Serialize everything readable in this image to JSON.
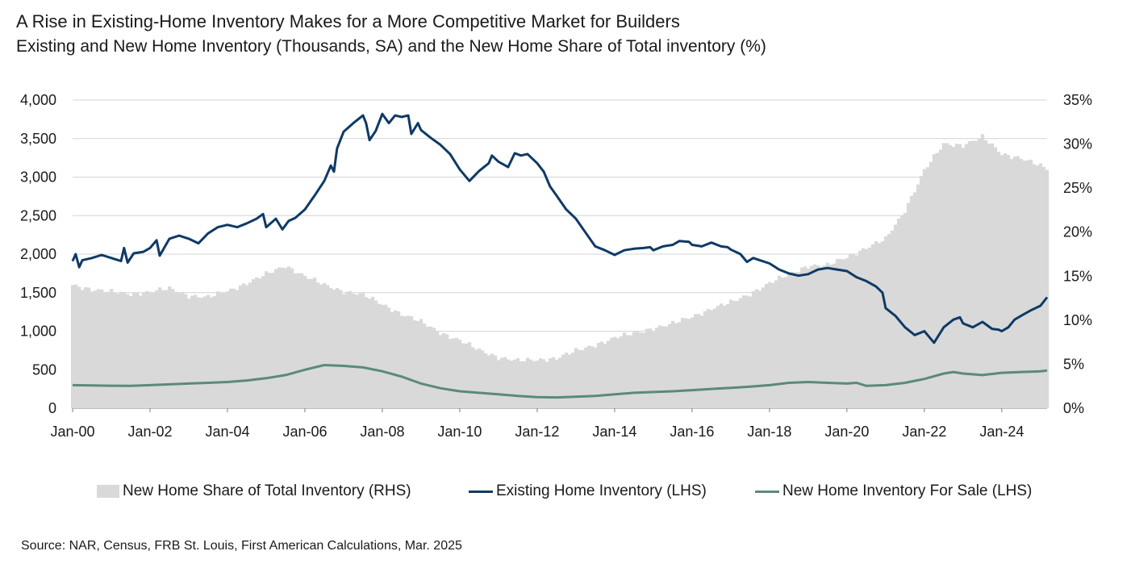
{
  "chart_data": {
    "type": "line",
    "title": "A Rise in Existing-Home Inventory Makes for a More Competitive Market for Builders",
    "subtitle": "Existing and New Home Inventory (Thousands, SA) and the New Home Share of Total inventory (%)",
    "x_tick_labels": [
      "Jan-00",
      "Jan-02",
      "Jan-04",
      "Jan-06",
      "Jan-08",
      "Jan-10",
      "Jan-12",
      "Jan-14",
      "Jan-16",
      "Jan-18",
      "Jan-20",
      "Jan-22",
      "Jan-24"
    ],
    "x_tick_years": [
      2000,
      2002,
      2004,
      2006,
      2008,
      2010,
      2012,
      2014,
      2016,
      2018,
      2020,
      2022,
      2024
    ],
    "x_range": [
      2000.0,
      2025.17
    ],
    "y_left": {
      "range": [
        0,
        4000
      ],
      "ticks": [
        0,
        500,
        1000,
        1500,
        2000,
        2500,
        3000,
        3500,
        4000
      ],
      "tick_labels": [
        "0",
        "500",
        "1,000",
        "1,500",
        "2,000",
        "2,500",
        "3,000",
        "3,500",
        "4,000"
      ]
    },
    "y_right": {
      "range": [
        0,
        35
      ],
      "ticks": [
        0,
        5,
        10,
        15,
        20,
        25,
        30,
        35
      ],
      "tick_labels": [
        "0%",
        "5%",
        "10%",
        "15%",
        "20%",
        "25%",
        "30%",
        "35%"
      ]
    },
    "legend_position": "bottom",
    "series": [
      {
        "name": "New Home Share of Total Inventory (RHS)",
        "type": "bar",
        "axis": "right",
        "color": "#d9d9d9",
        "points": [
          [
            2000.0,
            14.0
          ],
          [
            2000.5,
            13.5
          ],
          [
            2001.0,
            13.2
          ],
          [
            2001.5,
            13.0
          ],
          [
            2002.0,
            13.2
          ],
          [
            2002.5,
            13.6
          ],
          [
            2003.0,
            12.8
          ],
          [
            2003.5,
            12.6
          ],
          [
            2004.0,
            13.3
          ],
          [
            2004.5,
            14.2
          ],
          [
            2005.0,
            15.2
          ],
          [
            2005.5,
            16.2
          ],
          [
            2006.0,
            15.0
          ],
          [
            2006.5,
            14.0
          ],
          [
            2007.0,
            13.3
          ],
          [
            2007.5,
            12.9
          ],
          [
            2008.0,
            11.8
          ],
          [
            2008.5,
            10.7
          ],
          [
            2009.0,
            9.8
          ],
          [
            2009.5,
            8.6
          ],
          [
            2010.0,
            7.7
          ],
          [
            2010.5,
            6.6
          ],
          [
            2011.0,
            5.8
          ],
          [
            2011.5,
            5.4
          ],
          [
            2012.0,
            5.5
          ],
          [
            2012.5,
            5.7
          ],
          [
            2013.0,
            6.5
          ],
          [
            2013.5,
            7.2
          ],
          [
            2014.0,
            8.0
          ],
          [
            2014.5,
            8.5
          ],
          [
            2015.0,
            9.1
          ],
          [
            2015.5,
            9.6
          ],
          [
            2016.0,
            10.4
          ],
          [
            2016.5,
            11.3
          ],
          [
            2017.0,
            12.0
          ],
          [
            2017.5,
            13.0
          ],
          [
            2018.0,
            14.2
          ],
          [
            2018.5,
            15.2
          ],
          [
            2019.0,
            16.2
          ],
          [
            2019.5,
            16.2
          ],
          [
            2020.0,
            17.2
          ],
          [
            2020.5,
            18.2
          ],
          [
            2021.0,
            19.2
          ],
          [
            2021.5,
            22.5
          ],
          [
            2022.0,
            27.0
          ],
          [
            2022.5,
            30.0
          ],
          [
            2023.0,
            29.9
          ],
          [
            2023.5,
            30.8
          ],
          [
            2024.0,
            28.9
          ],
          [
            2024.5,
            28.4
          ],
          [
            2025.17,
            27.2
          ]
        ]
      },
      {
        "name": "Existing Home Inventory (LHS)",
        "type": "line",
        "axis": "left",
        "color": "#0e3a66",
        "points": [
          [
            2000.0,
            1910
          ],
          [
            2000.08,
            2000
          ],
          [
            2000.17,
            1830
          ],
          [
            2000.25,
            1920
          ],
          [
            2000.5,
            1950
          ],
          [
            2000.75,
            1990
          ],
          [
            2001.0,
            1950
          ],
          [
            2001.25,
            1910
          ],
          [
            2001.33,
            2080
          ],
          [
            2001.42,
            1890
          ],
          [
            2001.58,
            2010
          ],
          [
            2001.83,
            2030
          ],
          [
            2002.0,
            2080
          ],
          [
            2002.17,
            2180
          ],
          [
            2002.25,
            1980
          ],
          [
            2002.5,
            2200
          ],
          [
            2002.75,
            2240
          ],
          [
            2003.0,
            2200
          ],
          [
            2003.25,
            2140
          ],
          [
            2003.5,
            2270
          ],
          [
            2003.75,
            2350
          ],
          [
            2004.0,
            2380
          ],
          [
            2004.25,
            2350
          ],
          [
            2004.5,
            2400
          ],
          [
            2004.75,
            2460
          ],
          [
            2004.92,
            2520
          ],
          [
            2005.0,
            2350
          ],
          [
            2005.25,
            2460
          ],
          [
            2005.42,
            2320
          ],
          [
            2005.58,
            2430
          ],
          [
            2005.75,
            2470
          ],
          [
            2006.0,
            2580
          ],
          [
            2006.25,
            2760
          ],
          [
            2006.5,
            2950
          ],
          [
            2006.67,
            3150
          ],
          [
            2006.75,
            3070
          ],
          [
            2006.83,
            3370
          ],
          [
            2007.0,
            3590
          ],
          [
            2007.25,
            3700
          ],
          [
            2007.5,
            3800
          ],
          [
            2007.58,
            3700
          ],
          [
            2007.67,
            3480
          ],
          [
            2007.83,
            3600
          ],
          [
            2008.0,
            3820
          ],
          [
            2008.17,
            3700
          ],
          [
            2008.33,
            3800
          ],
          [
            2008.5,
            3780
          ],
          [
            2008.67,
            3800
          ],
          [
            2008.75,
            3560
          ],
          [
            2008.92,
            3700
          ],
          [
            2009.0,
            3610
          ],
          [
            2009.25,
            3510
          ],
          [
            2009.5,
            3420
          ],
          [
            2009.75,
            3300
          ],
          [
            2010.0,
            3100
          ],
          [
            2010.25,
            2950
          ],
          [
            2010.5,
            3080
          ],
          [
            2010.75,
            3180
          ],
          [
            2010.83,
            3280
          ],
          [
            2011.0,
            3200
          ],
          [
            2011.25,
            3130
          ],
          [
            2011.42,
            3310
          ],
          [
            2011.58,
            3280
          ],
          [
            2011.75,
            3300
          ],
          [
            2012.0,
            3180
          ],
          [
            2012.17,
            3070
          ],
          [
            2012.33,
            2880
          ],
          [
            2012.5,
            2760
          ],
          [
            2012.75,
            2580
          ],
          [
            2013.0,
            2460
          ],
          [
            2013.25,
            2280
          ],
          [
            2013.5,
            2100
          ],
          [
            2013.75,
            2050
          ],
          [
            2014.0,
            1990
          ],
          [
            2014.25,
            2050
          ],
          [
            2014.5,
            2070
          ],
          [
            2014.75,
            2080
          ],
          [
            2014.92,
            2090
          ],
          [
            2015.0,
            2050
          ],
          [
            2015.25,
            2100
          ],
          [
            2015.5,
            2120
          ],
          [
            2015.67,
            2170
          ],
          [
            2015.92,
            2160
          ],
          [
            2016.0,
            2120
          ],
          [
            2016.25,
            2100
          ],
          [
            2016.5,
            2150
          ],
          [
            2016.75,
            2100
          ],
          [
            2016.92,
            2090
          ],
          [
            2017.0,
            2060
          ],
          [
            2017.25,
            2000
          ],
          [
            2017.42,
            1900
          ],
          [
            2017.58,
            1950
          ],
          [
            2017.75,
            1920
          ],
          [
            2018.0,
            1880
          ],
          [
            2018.25,
            1800
          ],
          [
            2018.5,
            1750
          ],
          [
            2018.75,
            1720
          ],
          [
            2019.0,
            1740
          ],
          [
            2019.25,
            1800
          ],
          [
            2019.5,
            1820
          ],
          [
            2019.75,
            1800
          ],
          [
            2020.0,
            1780
          ],
          [
            2020.25,
            1700
          ],
          [
            2020.5,
            1650
          ],
          [
            2020.75,
            1580
          ],
          [
            2020.92,
            1500
          ],
          [
            2021.0,
            1300
          ],
          [
            2021.25,
            1200
          ],
          [
            2021.5,
            1050
          ],
          [
            2021.75,
            950
          ],
          [
            2022.0,
            1000
          ],
          [
            2022.25,
            850
          ],
          [
            2022.5,
            1050
          ],
          [
            2022.75,
            1150
          ],
          [
            2022.92,
            1180
          ],
          [
            2023.0,
            1100
          ],
          [
            2023.25,
            1050
          ],
          [
            2023.5,
            1120
          ],
          [
            2023.75,
            1030
          ],
          [
            2023.92,
            1020
          ],
          [
            2024.0,
            1000
          ],
          [
            2024.17,
            1050
          ],
          [
            2024.33,
            1150
          ],
          [
            2024.5,
            1200
          ],
          [
            2024.75,
            1270
          ],
          [
            2025.0,
            1330
          ],
          [
            2025.17,
            1440
          ]
        ]
      },
      {
        "name": "New Home Inventory For Sale (LHS)",
        "type": "line",
        "axis": "left",
        "color": "#5b8a7a",
        "points": [
          [
            2000.0,
            300
          ],
          [
            2000.5,
            295
          ],
          [
            2001.0,
            292
          ],
          [
            2001.5,
            290
          ],
          [
            2002.0,
            300
          ],
          [
            2002.5,
            310
          ],
          [
            2003.0,
            320
          ],
          [
            2003.5,
            330
          ],
          [
            2004.0,
            340
          ],
          [
            2004.5,
            360
          ],
          [
            2005.0,
            390
          ],
          [
            2005.5,
            430
          ],
          [
            2006.0,
            500
          ],
          [
            2006.5,
            560
          ],
          [
            2007.0,
            550
          ],
          [
            2007.5,
            530
          ],
          [
            2008.0,
            480
          ],
          [
            2008.5,
            410
          ],
          [
            2009.0,
            320
          ],
          [
            2009.5,
            260
          ],
          [
            2010.0,
            220
          ],
          [
            2010.5,
            200
          ],
          [
            2011.0,
            180
          ],
          [
            2011.5,
            160
          ],
          [
            2012.0,
            145
          ],
          [
            2012.5,
            140
          ],
          [
            2013.0,
            150
          ],
          [
            2013.5,
            160
          ],
          [
            2014.0,
            180
          ],
          [
            2014.5,
            200
          ],
          [
            2015.0,
            210
          ],
          [
            2015.5,
            220
          ],
          [
            2016.0,
            235
          ],
          [
            2016.5,
            250
          ],
          [
            2017.0,
            265
          ],
          [
            2017.5,
            280
          ],
          [
            2018.0,
            300
          ],
          [
            2018.5,
            330
          ],
          [
            2019.0,
            340
          ],
          [
            2019.5,
            330
          ],
          [
            2020.0,
            320
          ],
          [
            2020.25,
            330
          ],
          [
            2020.5,
            290
          ],
          [
            2021.0,
            300
          ],
          [
            2021.5,
            330
          ],
          [
            2022.0,
            380
          ],
          [
            2022.5,
            450
          ],
          [
            2022.75,
            470
          ],
          [
            2023.0,
            450
          ],
          [
            2023.5,
            430
          ],
          [
            2024.0,
            460
          ],
          [
            2024.5,
            470
          ],
          [
            2025.0,
            480
          ],
          [
            2025.17,
            490
          ]
        ]
      }
    ]
  },
  "legend": {
    "share_label": "New Home Share of Total Inventory (RHS)",
    "existing_label": "Existing Home Inventory (LHS)",
    "new_label": "New Home Inventory For Sale (LHS)"
  },
  "source": "Source: NAR, Census, FRB St. Louis, First American Calculations, Mar. 2025"
}
